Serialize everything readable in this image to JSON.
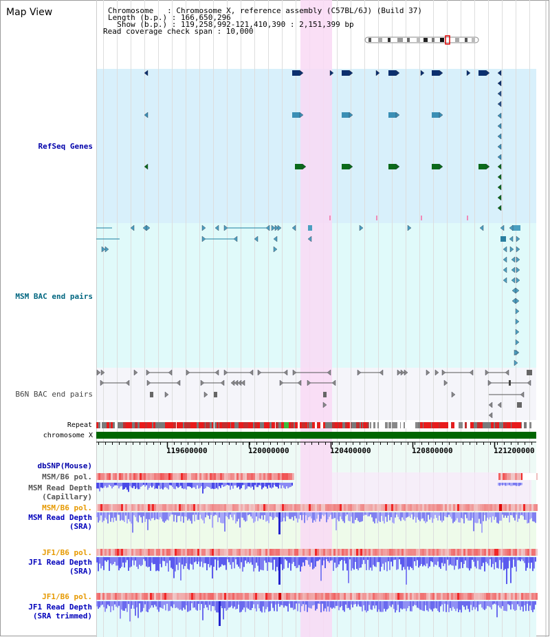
{
  "header": {
    "map_view_title": "Map View",
    "chromosome_line": "Chromosome   : Chromosome X, reference assembly (C57BL/6J) (Build 37)",
    "length_line": "Length (b.p.) : 166,650,296",
    "show_line": "  Show (b.p.) : 119,258,992-121,410,390 : 2,151,399 bp",
    "coverage_line": "Read coverage check span : 10,000"
  },
  "tracks": {
    "refseq_genes": "RefSeq Genes",
    "msm_bac": "MSM BAC end pairs",
    "b6n_bac": "B6N BAC end pairs",
    "repeat": "Repeat",
    "chromosome": "chromosome X"
  },
  "axis": {
    "ticks": [
      "119600000",
      "120000000",
      "120400000",
      "120800000",
      "121200000"
    ]
  },
  "lower_tracks": {
    "dbsnp": "dbSNP(Mouse)",
    "msm_b6_pol_1": "MSM/B6 pol.",
    "msm_read_depth_cap_1": "MSM Read Depth",
    "msm_read_depth_cap_2": "(Capillary)",
    "msm_b6_pol_2": "MSM/B6 pol.",
    "msm_read_depth_sra_1": "MSM Read Depth",
    "msm_read_depth_sra_2": "(SRA)",
    "jf1_b6_pol_1": "JF1/B6 pol.",
    "jf1_read_depth_sra_1": "JF1 Read Depth",
    "jf1_read_depth_sra_2": "(SRA)",
    "jf1_b6_pol_2": "JF1/B6 pol.",
    "jf1_read_depth_trim_1": "JF1 Read Depth",
    "jf1_read_depth_trim_2": "(SRA trimmed)"
  },
  "colors": {
    "refseq_bg": "#d8f0fb",
    "msm_bg": "#e0fafa",
    "b6n_bg": "#f5f5fa",
    "highlight": "#f9d9f4",
    "chromosome": "#006600",
    "refseq_label": "#0000aa",
    "msm_label": "#006680",
    "b6n_label": "#444444",
    "pol_orange": "#e69900",
    "depth_blue": "#0000bb"
  }
}
